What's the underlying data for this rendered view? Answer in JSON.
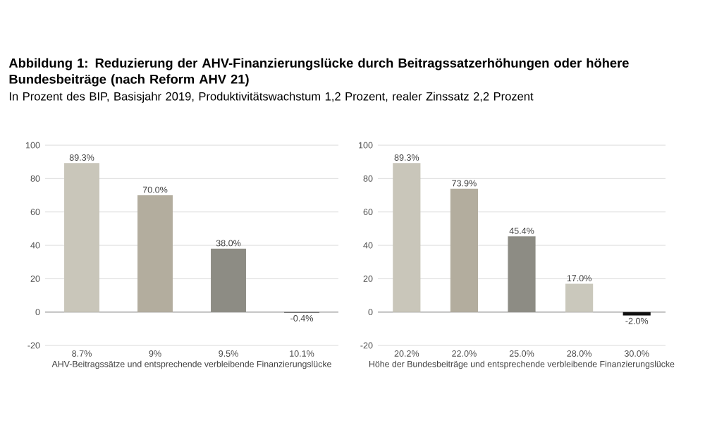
{
  "chart_data": [
    {
      "type": "bar",
      "title": "Abbildung 1: Reduzierung der AHV-Finanzierungslücke durch Beitragssatzerhöhungen oder höhere Bundesbeiträge (nach Reform AHV 21)",
      "subtitle": "In Prozent des BIP, Basisjahr 2019, Produktivitätswachstum 1,2 Prozent, realer Zinssatz 2,2 Prozent",
      "xlabel": "AHV-Beitragssätze und entsprechende verbleibende Finanzierungslücke",
      "categories": [
        "8.7%",
        "9%",
        "9.5%",
        "10.1%"
      ],
      "values": [
        89.3,
        70.0,
        38.0,
        -0.4
      ],
      "value_labels": [
        "89.3%",
        "70.0%",
        "38.0%",
        "-0.4%"
      ],
      "colors": [
        "#c9c6ba",
        "#b3ad9e",
        "#8d8c84",
        "#222222"
      ],
      "ylim": [
        -20,
        100
      ],
      "yticks": [
        -20,
        0,
        20,
        40,
        60,
        80,
        100
      ],
      "grid": "y"
    },
    {
      "type": "bar",
      "xlabel": "Höhe der Bundesbeiträge und entsprechende verbleibende Finanzierungslücke",
      "categories": [
        "20.2%",
        "22.0%",
        "25.0%",
        "28.0%",
        "30.0%"
      ],
      "values": [
        89.3,
        73.9,
        45.4,
        17.0,
        -2.0
      ],
      "value_labels": [
        "89.3%",
        "73.9%",
        "45.4%",
        "17.0%",
        "-2.0%"
      ],
      "colors": [
        "#c9c6ba",
        "#b3ad9e",
        "#8d8c84",
        "#cac8bc",
        "#111111"
      ],
      "ylim": [
        -20,
        100
      ],
      "yticks": [
        -20,
        0,
        20,
        40,
        60,
        80,
        100
      ],
      "grid": "y"
    }
  ]
}
